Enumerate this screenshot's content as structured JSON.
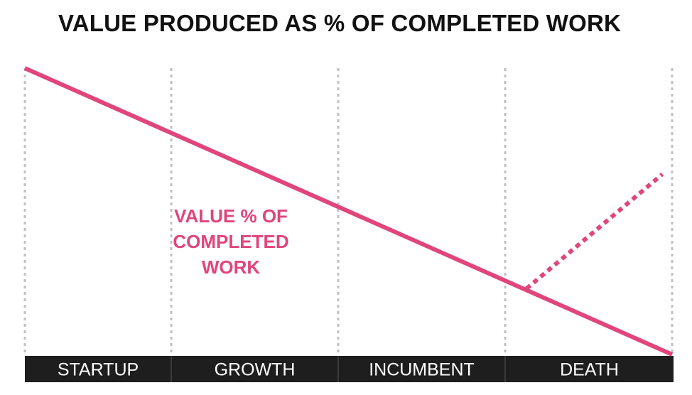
{
  "title": "VALUE PRODUCED AS % OF COMPLETED WORK",
  "colors": {
    "series": "#e0457b",
    "grid": "#c0c0c0",
    "phase_bar": "#1e1e1e",
    "phase_text": "#ffffff",
    "title": "#111111"
  },
  "chart_data": {
    "type": "line",
    "title": "VALUE PRODUCED AS % OF COMPLETED WORK",
    "xlabel": "",
    "ylabel": "",
    "categories": [
      "STARTUP",
      "GROWTH",
      "INCUMBENT",
      "DEATH"
    ],
    "x_range": [
      0,
      4
    ],
    "ylim": [
      0,
      100
    ],
    "grid": "vertical dotted lines at phase boundaries",
    "series": [
      {
        "name": "VALUE % OF COMPLETED WORK",
        "style": "solid",
        "x": [
          0,
          4
        ],
        "y": [
          100,
          0
        ]
      },
      {
        "style": "dotted",
        "x": [
          3.1,
          3.94
        ],
        "y": [
          23,
          63
        ]
      }
    ],
    "annotation": {
      "lines": [
        "VALUE % OF",
        "COMPLETED",
        "WORK"
      ]
    }
  }
}
